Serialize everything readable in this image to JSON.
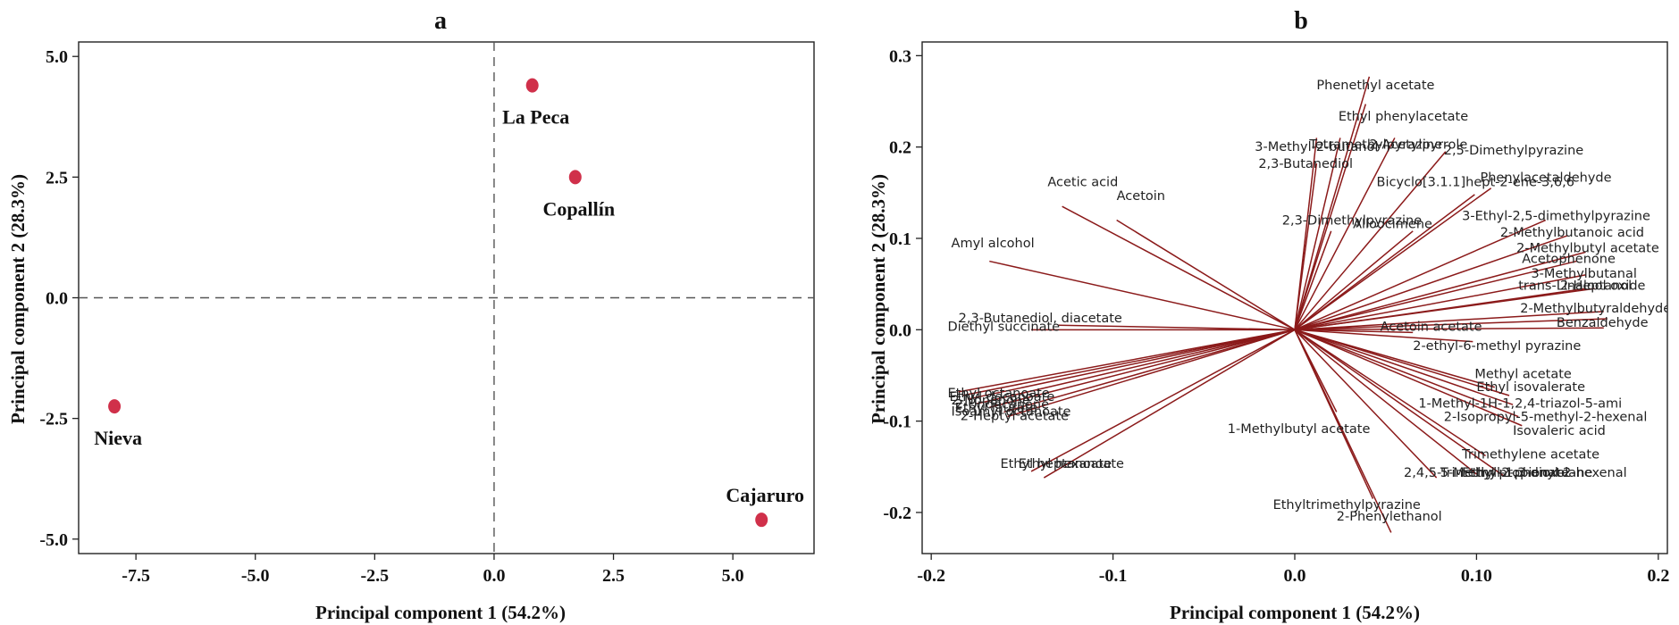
{
  "chart_data": [
    {
      "type": "scatter",
      "panel_label": "a",
      "xlabel": "Principal component 1 (54.2%)",
      "ylabel": "Principal component 2 (28.3%)",
      "xlim": [
        -8.7,
        6.7
      ],
      "ylim": [
        -5.3,
        5.3
      ],
      "xticks": [
        -7.5,
        -5.0,
        -2.5,
        0.0,
        2.5,
        5.0
      ],
      "xtick_labels": [
        "-7.5",
        "-5.0",
        "-2.5",
        "0.0",
        "2.5",
        "5.0"
      ],
      "yticks": [
        -5.0,
        -2.5,
        0.0,
        2.5,
        5.0
      ],
      "ytick_labels": [
        "-5.0",
        "-2.5",
        "0.0",
        "2.5",
        "5.0"
      ],
      "reference_lines": {
        "x": 0,
        "y": 0,
        "style": "dashed"
      },
      "grid": false,
      "point_color": "#d0304a",
      "points": [
        {
          "label": "La Peca",
          "x": 0.8,
          "y": 4.4,
          "label_position": "below"
        },
        {
          "label": "Copallín",
          "x": 1.7,
          "y": 2.5,
          "label_position": "below"
        },
        {
          "label": "Nieva",
          "x": -7.95,
          "y": -2.25,
          "label_position": "below"
        },
        {
          "label": "Cajaruro",
          "x": 5.6,
          "y": -4.6,
          "label_position": "above"
        }
      ]
    },
    {
      "type": "biplot-loadings",
      "panel_label": "b",
      "xlabel": "Principal component 1 (54.2%)",
      "ylabel": "Principal component 2 (28.3%)",
      "xlim": [
        -0.205,
        0.205
      ],
      "ylim": [
        -0.245,
        0.315
      ],
      "xticks": [
        -0.2,
        -0.1,
        0.0,
        0.1,
        0.2
      ],
      "xtick_labels": [
        "-0.2",
        "-0.1",
        "0.0",
        "0.10",
        "0.2"
      ],
      "yticks": [
        -0.2,
        -0.1,
        0.0,
        0.1,
        0.2,
        0.3
      ],
      "ytick_labels": [
        "-0.2",
        "-0.1",
        "0.0",
        "0.1",
        "0.2",
        "0.3"
      ],
      "grid": false,
      "vector_color": "#8b1a1a",
      "vectors": [
        {
          "x": 0.041,
          "y": 0.277,
          "label": "Phenethyl acetate"
        },
        {
          "x": 0.039,
          "y": 0.247,
          "label": "Ethyl phenylacetate"
        },
        {
          "x": 0.012,
          "y": 0.21,
          "label": "3-Methyl-2-butanol"
        },
        {
          "x": 0.025,
          "y": 0.21,
          "label": "Tetramethylpyrazine"
        },
        {
          "x": 0.055,
          "y": 0.21,
          "label": "2-Acetylpyrrole"
        },
        {
          "x": 0.083,
          "y": 0.195,
          "label": "2,5-Dimethylpyrazine"
        },
        {
          "x": 0.012,
          "y": 0.182,
          "label": "2,3-Butanediol"
        },
        {
          "x": 0.108,
          "y": 0.155,
          "label": "Phenylacetaldehyde"
        },
        {
          "x": 0.099,
          "y": 0.148,
          "label": "Bicyclo[3.1.1]hept-2-ene-3,6,6"
        },
        {
          "x": -0.128,
          "y": 0.135,
          "label": "Acetic acid"
        },
        {
          "x": -0.098,
          "y": 0.12,
          "label": "Acetoin"
        },
        {
          "x": 0.138,
          "y": 0.12,
          "label": "3-Ethyl-2,5-dimethylpyrazine"
        },
        {
          "x": 0.02,
          "y": 0.108,
          "label": "2,3-Dimethylpyrazine"
        },
        {
          "x": 0.065,
          "y": 0.108,
          "label": "Alloocimene"
        },
        {
          "x": 0.15,
          "y": 0.103,
          "label": "2-Methylbutanoic acid"
        },
        {
          "x": 0.16,
          "y": 0.085,
          "label": "2-Methylbutyl acetate"
        },
        {
          "x": -0.168,
          "y": 0.075,
          "label": "Amyl alcohol"
        },
        {
          "x": 0.155,
          "y": 0.075,
          "label": "Acetophenone"
        },
        {
          "x": 0.16,
          "y": 0.06,
          "label": "3-Methylbutanal"
        },
        {
          "x": 0.16,
          "y": 0.045,
          "label": "trans-Linalool oxide"
        },
        {
          "x": 0.165,
          "y": 0.045,
          "label": "2-Heptanol"
        },
        {
          "x": 0.17,
          "y": 0.02,
          "label": "2-Methylbutyraldehyde"
        },
        {
          "x": 0.172,
          "y": 0.012,
          "label": "Linalool"
        },
        {
          "x": 0.17,
          "y": 0.002,
          "label": "Benzaldehyde"
        },
        {
          "x": 0.065,
          "y": -0.003,
          "label": "Acetoin acetate"
        },
        {
          "x": 0.098,
          "y": -0.013,
          "label": "2-ethyl-6-methyl pyrazine"
        },
        {
          "x": -0.13,
          "y": 0.005,
          "label": "2,3-Butanediol, diacetate"
        },
        {
          "x": -0.145,
          "y": 0.0,
          "label": "Diethyl succinate"
        },
        {
          "x": -0.185,
          "y": -0.068,
          "label": "Ethyl octanoate"
        },
        {
          "x": -0.183,
          "y": -0.072,
          "label": "Ethyl decanoate"
        },
        {
          "x": -0.18,
          "y": -0.076,
          "label": "2-Nonanone"
        },
        {
          "x": -0.175,
          "y": -0.081,
          "label": "2-Undecanone"
        },
        {
          "x": -0.168,
          "y": -0.085,
          "label": "Ethyl laurate"
        },
        {
          "x": -0.16,
          "y": -0.09,
          "label": "Isoamyl octanoate"
        },
        {
          "x": -0.158,
          "y": -0.095,
          "label": "2-Heptyl acetate"
        },
        {
          "x": -0.145,
          "y": -0.155,
          "label": "Ethyl heptanoate"
        },
        {
          "x": -0.138,
          "y": -0.162,
          "label": "Ethyl hexanoate"
        },
        {
          "x": 0.11,
          "y": -0.063,
          "label": "Methyl acetate"
        },
        {
          "x": 0.118,
          "y": -0.072,
          "label": "Ethyl isovalerate"
        },
        {
          "x": 0.12,
          "y": -0.082,
          "label": "1-Methyl-1H-1,2,4-triazol-5-ami"
        },
        {
          "x": 0.123,
          "y": -0.095,
          "label": "2-Isopropyl-5-methyl-2-hexenal"
        },
        {
          "x": 0.125,
          "y": -0.105,
          "label": "Isovaleric acid"
        },
        {
          "x": 0.105,
          "y": -0.138,
          "label": "Trimethylene acetate"
        },
        {
          "x": 0.1,
          "y": -0.158,
          "label": "2,4,5-Trimethyl-1,3-dioxolane"
        },
        {
          "x": 0.115,
          "y": -0.16,
          "label": "5-Methyl-2-phenyl-2-hexenal"
        },
        {
          "x": 0.078,
          "y": -0.162,
          "label": "Ethyl propionate"
        },
        {
          "x": 0.023,
          "y": -0.09,
          "label": "1-Methylbutyl acetate"
        },
        {
          "x": 0.043,
          "y": -0.185,
          "label": "Ethyltrimethylpyrazine"
        },
        {
          "x": 0.053,
          "y": -0.222,
          "label": "2-Phenylethanol"
        }
      ],
      "annotations": [
        {
          "text": "Phenethyl acetate",
          "x": 0.012,
          "y": 0.263,
          "anchor": "start"
        },
        {
          "text": "Ethyl phenylacetate",
          "x": 0.024,
          "y": 0.229,
          "anchor": "start"
        },
        {
          "text": "3-Methyl-2-butanol",
          "x": -0.022,
          "y": 0.196,
          "anchor": "start"
        },
        {
          "text": "Tetramethylpyrazine",
          "x": 0.008,
          "y": 0.198,
          "anchor": "start"
        },
        {
          "text": "2-Acetylpyrrole",
          "x": 0.041,
          "y": 0.198,
          "anchor": "start"
        },
        {
          "text": "2,5-Dimethylpyrazine",
          "x": 0.082,
          "y": 0.192,
          "anchor": "start"
        },
        {
          "text": "2,3-Butanediol",
          "x": -0.02,
          "y": 0.177,
          "anchor": "start"
        },
        {
          "text": "Bicyclo[3.1.1]hept-2-ene-3,6,6",
          "x": 0.045,
          "y": 0.157,
          "anchor": "start"
        },
        {
          "text": "Phenylacetaldehyde",
          "x": 0.102,
          "y": 0.162,
          "anchor": "start"
        },
        {
          "text": "Acetic acid",
          "x": -0.136,
          "y": 0.157,
          "anchor": "start"
        },
        {
          "text": "Acetoin",
          "x": -0.098,
          "y": 0.142,
          "anchor": "start"
        },
        {
          "text": "3-Ethyl-2,5-dimethylpyrazine",
          "x": 0.092,
          "y": 0.12,
          "anchor": "start"
        },
        {
          "text": "2,3-Dimethylpyrazine",
          "x": -0.007,
          "y": 0.115,
          "anchor": "start"
        },
        {
          "text": "Alloocimene",
          "x": 0.032,
          "y": 0.111,
          "anchor": "start"
        },
        {
          "text": "2-Methylbutanoic acid",
          "x": 0.113,
          "y": 0.102,
          "anchor": "start"
        },
        {
          "text": "2-Methylbutyl acetate",
          "x": 0.122,
          "y": 0.085,
          "anchor": "start"
        },
        {
          "text": "Amyl alcohol",
          "x": -0.189,
          "y": 0.09,
          "anchor": "start"
        },
        {
          "text": "Acetophenone",
          "x": 0.125,
          "y": 0.073,
          "anchor": "start"
        },
        {
          "text": "3-Methylbutanal",
          "x": 0.13,
          "y": 0.057,
          "anchor": "start"
        },
        {
          "text": "trans-Linalool oxide",
          "x": 0.123,
          "y": 0.044,
          "anchor": "start"
        },
        {
          "text": "2-Heptanol",
          "x": 0.146,
          "y": 0.044,
          "anchor": "start"
        },
        {
          "text": "2-Methylbutyraldehyde",
          "x": 0.124,
          "y": 0.019,
          "anchor": "start"
        },
        {
          "text": "Benzaldehyde",
          "x": 0.144,
          "y": 0.003,
          "anchor": "start"
        },
        {
          "text": "Acetoin acetate",
          "x": 0.047,
          "y": -0.001,
          "anchor": "start"
        },
        {
          "text": "2-ethyl-6-methyl pyrazine",
          "x": 0.065,
          "y": -0.022,
          "anchor": "start"
        },
        {
          "text": "2,3-Butanediol, diacetate",
          "x": -0.185,
          "y": 0.008,
          "anchor": "start"
        },
        {
          "text": "Diethyl succinate",
          "x": -0.191,
          "y": -0.001,
          "anchor": "start"
        },
        {
          "text": "Ethyl octanoate",
          "x": -0.191,
          "y": -0.074,
          "anchor": "start"
        },
        {
          "text": "Ethyl decanoate",
          "x": -0.19,
          "y": -0.078,
          "anchor": "start"
        },
        {
          "text": "2-Nonanone",
          "x": -0.189,
          "y": -0.082,
          "anchor": "start"
        },
        {
          "text": "2-Undecanone",
          "x": -0.187,
          "y": -0.086,
          "anchor": "start"
        },
        {
          "text": "Ethyl laurate",
          "x": -0.187,
          "y": -0.09,
          "anchor": "start"
        },
        {
          "text": "Isoamyl octanoate",
          "x": -0.189,
          "y": -0.094,
          "anchor": "start"
        },
        {
          "text": "2-Heptyl acetate",
          "x": -0.184,
          "y": -0.099,
          "anchor": "start"
        },
        {
          "text": "Ethyl heptanoate",
          "x": -0.162,
          "y": -0.151,
          "anchor": "start"
        },
        {
          "text": "Ethyl hexanoate",
          "x": -0.152,
          "y": -0.151,
          "anchor": "start"
        },
        {
          "text": "Methyl acetate",
          "x": 0.099,
          "y": -0.053,
          "anchor": "start"
        },
        {
          "text": "Ethyl isovalerate",
          "x": 0.1,
          "y": -0.067,
          "anchor": "start"
        },
        {
          "text": "1-Methyl-1H-1,2,4-triazol-5-ami",
          "x": 0.068,
          "y": -0.085,
          "anchor": "start"
        },
        {
          "text": "2-Isopropyl-5-methyl-2-hexenal",
          "x": 0.082,
          "y": -0.1,
          "anchor": "start"
        },
        {
          "text": "Isovaleric acid",
          "x": 0.12,
          "y": -0.115,
          "anchor": "start"
        },
        {
          "text": "Trimethylene acetate",
          "x": 0.092,
          "y": -0.141,
          "anchor": "start"
        },
        {
          "text": "2,4,5-Trimethyl-1,3-dioxolane",
          "x": 0.06,
          "y": -0.161,
          "anchor": "start"
        },
        {
          "text": "5-Methyl-2-phenyl-2-hexenal",
          "x": 0.08,
          "y": -0.161,
          "anchor": "start"
        },
        {
          "text": "Ethyl propionate",
          "x": 0.092,
          "y": -0.161,
          "anchor": "start"
        },
        {
          "text": "1-Methylbutyl acetate",
          "x": -0.037,
          "y": -0.113,
          "anchor": "start"
        },
        {
          "text": "Ethyltrimethylpyrazine",
          "x": -0.012,
          "y": -0.196,
          "anchor": "start"
        },
        {
          "text": "2-Phenylethanol",
          "x": 0.023,
          "y": -0.209,
          "anchor": "start"
        }
      ]
    }
  ]
}
